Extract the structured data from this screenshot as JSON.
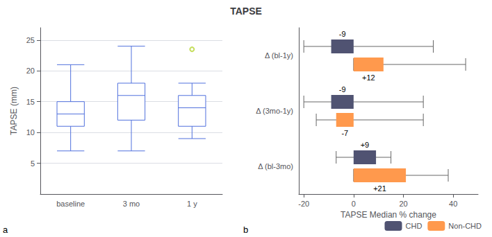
{
  "chart_data": [
    {
      "type": "box",
      "title": "TAPSE",
      "panel_label": "a",
      "ylabel": "TAPSE (mm)",
      "categories": [
        "baseline",
        "3 mo",
        "1 y"
      ],
      "boxes": [
        {
          "min": 7,
          "q1": 11,
          "median": 13,
          "q3": 15,
          "max": 21,
          "outliers": []
        },
        {
          "min": 7,
          "q1": 12,
          "median": 16,
          "q3": 18,
          "max": 24,
          "outliers": []
        },
        {
          "min": 9,
          "q1": 11,
          "median": 14,
          "q3": 16,
          "max": 18,
          "outliers": [
            23.5
          ]
        }
      ],
      "ylim": [
        0,
        27
      ],
      "yticks": [
        5,
        10,
        15,
        20,
        25
      ],
      "grid": true
    },
    {
      "type": "bar",
      "orientation": "horizontal",
      "panel_label": "b",
      "xlabel": "TAPSE Median % change",
      "categories": [
        "Δ (bl-1y)",
        "Δ (3mo-1y)",
        "Δ (bl-3mo)"
      ],
      "series": [
        {
          "name": "CHD",
          "values": [
            -9,
            -9,
            9
          ],
          "range_low": [
            -20,
            -20,
            -7
          ],
          "range_high": [
            32,
            28,
            15
          ],
          "value_labels": [
            "-9",
            "-9",
            "+9"
          ]
        },
        {
          "name": "Non-CHD",
          "values": [
            12,
            -7,
            21
          ],
          "range_low": [
            0,
            -15,
            0
          ],
          "range_high": [
            45,
            28,
            38
          ],
          "value_labels": [
            "+12",
            "-7",
            "+21"
          ]
        }
      ],
      "xlim": [
        -22,
        50
      ],
      "xticks": [
        -20,
        0,
        20,
        40
      ],
      "data_labels": true,
      "grid": false,
      "legend": "lower right"
    }
  ]
}
